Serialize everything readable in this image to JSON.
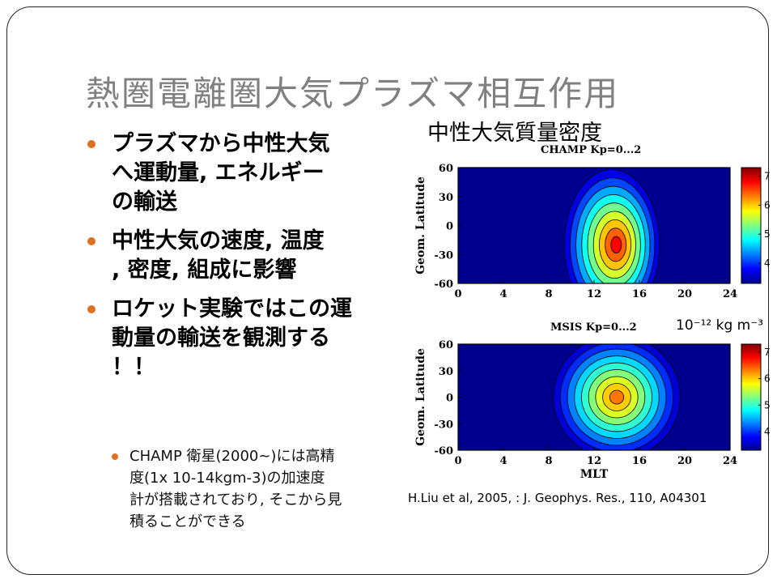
{
  "slide": {
    "title": "熱圏電離圏大気プラズマ相互作用",
    "bullets": [
      "プラズマから中性大気へ運動量, エネルギーの輸送",
      "中性大気の速度, 温度, 密度, 組成に影響",
      "ロケット実験ではこの運動量の輸送を観測する！！"
    ],
    "bullet_lines": [
      [
        "プラズマから中性大気",
        "へ運動量, エネルギー",
        "の輸送"
      ],
      [
        "中性大気の速度, 温度",
        ", 密度, 組成に影響"
      ],
      [
        "ロケット実験ではこの運",
        "動量の輸送を観測する",
        "！！"
      ]
    ],
    "sub_bullet_lines": [
      "CHAMP 衛星(2000~)には高精",
      "度(1x 10-14kgm-3)の加速度",
      "計が搭載されており, そこから見",
      "積ることができる"
    ],
    "figure_heading": "中性大気質量密度",
    "unit_label": "10⁻¹² kg m⁻³",
    "citation": "H.Liu et al, 2005, : J. Geophys. Res., 110, A04301",
    "accent_color": "#e07020"
  },
  "chart_data": [
    {
      "type": "heatmap",
      "title": "CHAMP Kp=0...2",
      "xlabel": "",
      "ylabel": "Geom. Latitude",
      "x_ticks": [
        "0",
        "4",
        "8",
        "12",
        "16",
        "20",
        "24"
      ],
      "y_ticks": [
        "60",
        "30",
        "0",
        "-30",
        "-60"
      ],
      "xlim": [
        0,
        24
      ],
      "ylim": [
        -60,
        60
      ],
      "colorbar_ticks": [
        "7",
        "6",
        "5",
        "4"
      ],
      "colorbar_range": [
        3.3,
        7.3
      ],
      "peak": {
        "mlt": 14,
        "lat": -20,
        "value": 7.0
      }
    },
    {
      "type": "heatmap",
      "title": "MSIS Kp=0...2",
      "xlabel": "MLT",
      "ylabel": "Geom. Latitude",
      "x_ticks": [
        "0",
        "4",
        "8",
        "12",
        "16",
        "20",
        "24"
      ],
      "y_ticks": [
        "60",
        "30",
        "0",
        "-30",
        "-60"
      ],
      "xlim": [
        0,
        24
      ],
      "ylim": [
        -60,
        60
      ],
      "colorbar_ticks": [
        "7",
        "6",
        "5",
        "4"
      ],
      "colorbar_range": [
        3.3,
        7.3
      ],
      "peak": {
        "mlt": 14,
        "lat": 0,
        "value": 6.5
      }
    }
  ]
}
